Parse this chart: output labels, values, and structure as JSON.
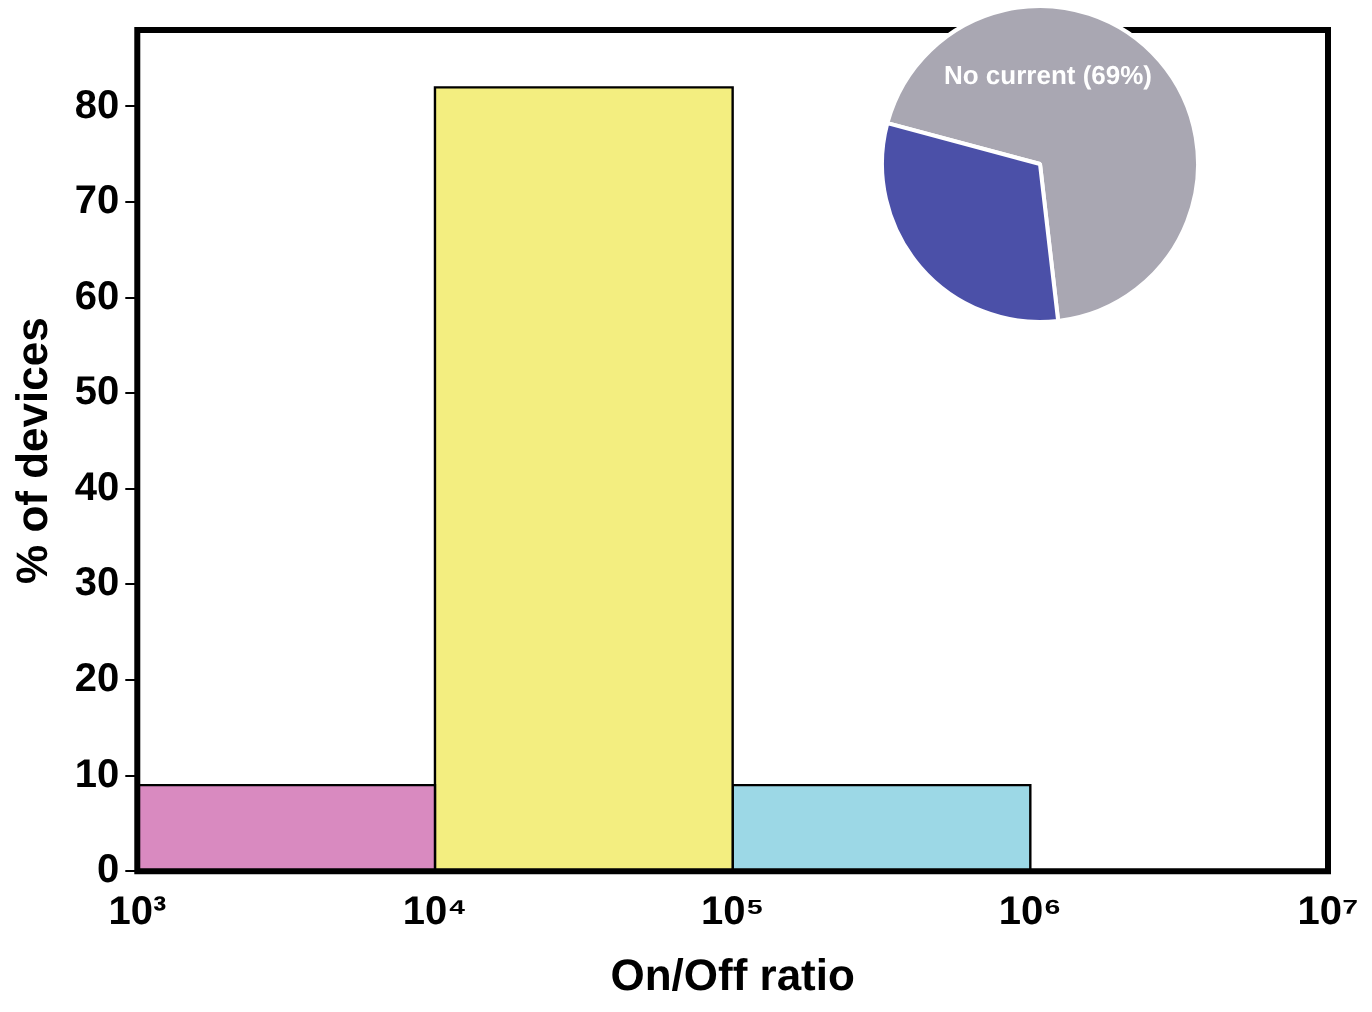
{
  "chart_data": [
    {
      "type": "histogram",
      "xlabel": "On/Off ratio",
      "ylabel": "% of devices",
      "log": "x",
      "bins": [
        1000,
        10000,
        100000,
        1000000
      ],
      "values": [
        9,
        82,
        9
      ],
      "colors": [
        "#d98ac0",
        "#f3ee80",
        "#9cd8e6"
      ],
      "xlim": [
        1000,
        10000000
      ],
      "xticks": [
        {
          "value": 1000,
          "label": "10³"
        },
        {
          "value": 10000,
          "label": "10⁴"
        },
        {
          "value": 100000,
          "label": "10⁵"
        },
        {
          "value": 1000000,
          "label": "10⁶"
        },
        {
          "value": 10000000,
          "label": "10⁷"
        }
      ],
      "ylim": [
        0,
        88
      ],
      "yticks": [
        0,
        10,
        20,
        30,
        40,
        50,
        60,
        70,
        80
      ]
    },
    {
      "type": "pie",
      "categories": [
        "No current",
        null
      ],
      "values": [
        69,
        31
      ],
      "colors": [
        "#a9a7b2",
        "#4b50a8"
      ],
      "value_labels": [
        "(69%)",
        null
      ]
    }
  ]
}
